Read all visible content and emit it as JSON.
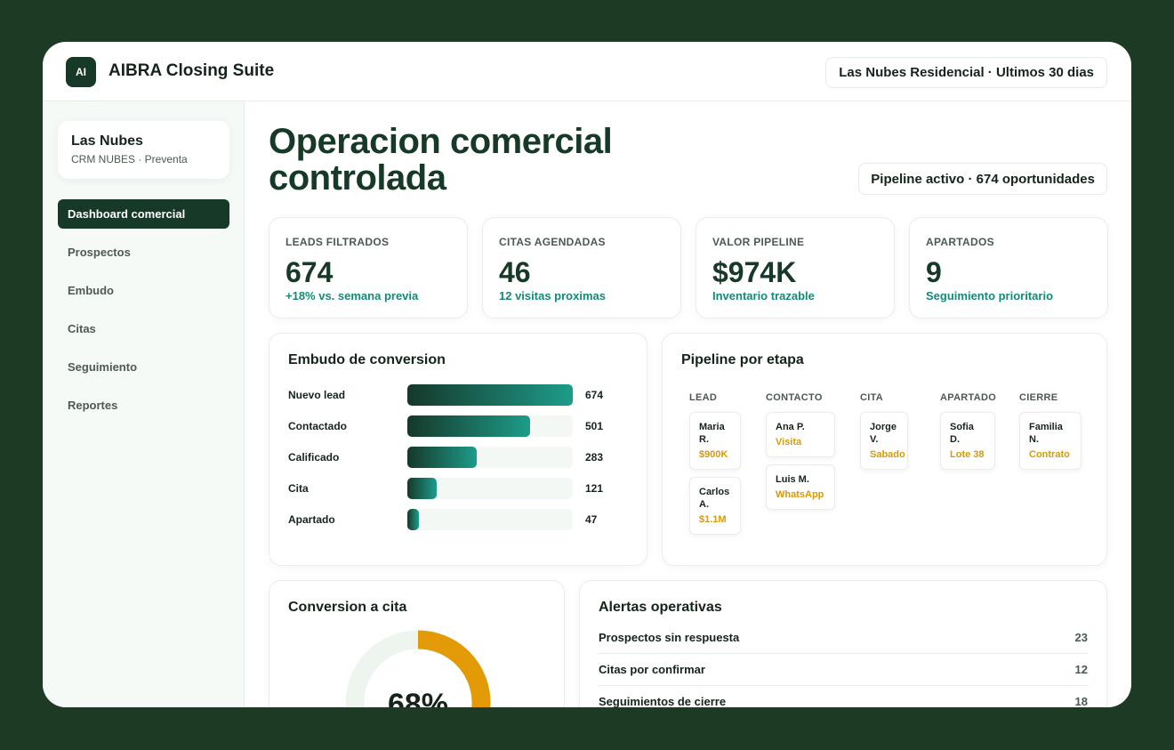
{
  "header": {
    "logo": "AI",
    "title": "AIBRA Closing Suite",
    "context": "Las Nubes Residencial · Ultimos 30 dias"
  },
  "sidebar": {
    "project": "Las Nubes",
    "subtitle": "CRM NUBES · Preventa",
    "nav": [
      "Dashboard comercial",
      "Prospectos",
      "Embudo",
      "Citas",
      "Seguimiento",
      "Reportes"
    ],
    "active": 0
  },
  "page": {
    "title": "Operacion comercial controlada",
    "badge": "Pipeline activo · 674 oportunidades"
  },
  "kpis": [
    {
      "label": "LEADS FILTRADOS",
      "value": 674,
      "note": "+18% vs. semana previa"
    },
    {
      "label": "CITAS AGENDADAS",
      "value": 46,
      "note": "12 visitas proximas"
    },
    {
      "label": "VALOR PIPELINE",
      "value": "$974K",
      "note": "Inventario trazable"
    },
    {
      "label": "APARTADOS",
      "value": 9,
      "note": "Seguimiento prioritario"
    }
  ],
  "funnel": {
    "title": "Embudo de conversion",
    "stages": [
      {
        "label": "Nuevo lead",
        "value": 674
      },
      {
        "label": "Contactado",
        "value": 501
      },
      {
        "label": "Calificado",
        "value": 283
      },
      {
        "label": "Cita",
        "value": 121
      },
      {
        "label": "Apartado",
        "value": 47
      }
    ]
  },
  "pipeline": {
    "title": "Pipeline por etapa",
    "columns": [
      {
        "name": "LEAD",
        "cards": [
          {
            "name": "Maria R.",
            "detail": "$900K"
          },
          {
            "name": "Carlos A.",
            "detail": "$1.1M"
          }
        ]
      },
      {
        "name": "CONTACTO",
        "cards": [
          {
            "name": "Ana P.",
            "detail": "Visita"
          },
          {
            "name": "Luis M.",
            "detail": "WhatsApp"
          }
        ]
      },
      {
        "name": "CITA",
        "cards": [
          {
            "name": "Jorge V.",
            "detail": "Sabado"
          }
        ]
      },
      {
        "name": "APARTADO",
        "cards": [
          {
            "name": "Sofia D.",
            "detail": "Lote 38"
          }
        ]
      },
      {
        "name": "CIERRE",
        "cards": [
          {
            "name": "Familia N.",
            "detail": "Contrato"
          }
        ]
      }
    ]
  },
  "conversion": {
    "title": "Conversion a cita",
    "value": 68,
    "value_label": "68%"
  },
  "alerts": {
    "title": "Alertas operativas",
    "items": [
      {
        "label": "Prospectos sin respuesta",
        "count": 23
      },
      {
        "label": "Citas por confirmar",
        "count": 12
      },
      {
        "label": "Seguimientos de cierre",
        "count": 18
      }
    ]
  }
}
